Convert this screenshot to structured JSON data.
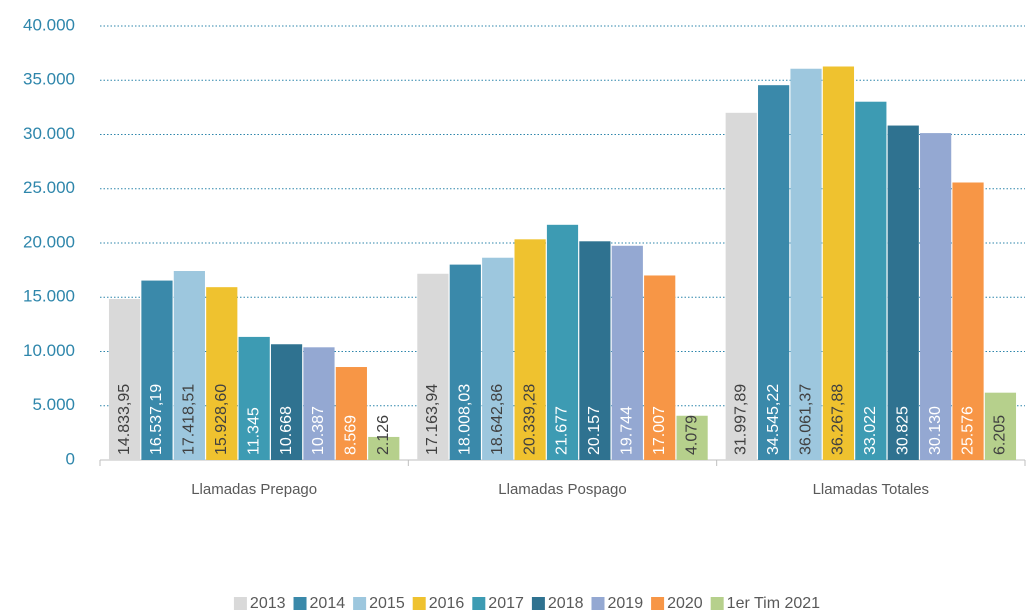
{
  "chart_data": {
    "type": "bar",
    "categories": [
      "Llamadas Prepago",
      "Llamadas Pospago",
      "Llamadas Totales"
    ],
    "series": [
      {
        "name": "2013",
        "color": "#d9d9d9",
        "label_color": "#404040",
        "values": [
          14833.95,
          17163.94,
          31997.89
        ],
        "value_labels": [
          "14.833,95",
          "17.163,94",
          "31.997,89"
        ]
      },
      {
        "name": "2014",
        "color": "#3a89aa",
        "label_color": "#ffffff",
        "values": [
          16537.19,
          18008.03,
          34545.22
        ],
        "value_labels": [
          "16.537,19",
          "18.008,03",
          "34.545,22"
        ]
      },
      {
        "name": "2015",
        "color": "#9dc7de",
        "label_color": "#404040",
        "values": [
          17418.51,
          18642.86,
          36061.37
        ],
        "value_labels": [
          "17.418,51",
          "18.642,86",
          "36.061,37"
        ]
      },
      {
        "name": "2016",
        "color": "#efc22f",
        "label_color": "#404040",
        "values": [
          15928.6,
          20339.28,
          36267.88
        ],
        "value_labels": [
          "15.928,60",
          "20.339,28",
          "36.267,88"
        ]
      },
      {
        "name": "2017",
        "color": "#3d9bb3",
        "label_color": "#ffffff",
        "values": [
          11345,
          21677,
          33022
        ],
        "value_labels": [
          "11.345",
          "21.677",
          "33.022"
        ]
      },
      {
        "name": "2018",
        "color": "#2f7290",
        "label_color": "#ffffff",
        "values": [
          10668,
          20157,
          30825
        ],
        "value_labels": [
          "10.668",
          "20.157",
          "30.825"
        ]
      },
      {
        "name": "2019",
        "color": "#94a8d2",
        "label_color": "#ffffff",
        "values": [
          10387,
          19744,
          30130
        ],
        "value_labels": [
          "10.387",
          "19.744",
          "30.130"
        ]
      },
      {
        "name": "2020",
        "color": "#f79646",
        "label_color": "#ffffff",
        "values": [
          8569,
          17007,
          25576
        ],
        "value_labels": [
          "8.569",
          "17.007",
          "25.576"
        ]
      },
      {
        "name": "1er Tim 2021",
        "color": "#b6d08c",
        "label_color": "#404040",
        "values": [
          2126,
          4079,
          6205
        ],
        "value_labels": [
          "2.126",
          "4.079",
          "6.205"
        ]
      }
    ],
    "ylim": [
      0,
      40000
    ],
    "yticks": [
      0,
      {
        "value": 5000,
        "label": "5.000"
      },
      {
        "value": 10000,
        "label": "10.000"
      },
      {
        "value": 15000,
        "label": "15.000"
      },
      {
        "value": 20000,
        "label": "20.000"
      },
      {
        "value": 25000,
        "label": "25.000"
      },
      {
        "value": 30000,
        "label": "30.000"
      },
      {
        "value": 35000,
        "label": "35.000"
      },
      {
        "value": 40000,
        "label": "40.000"
      }
    ],
    "grid": true,
    "legend": "bottom"
  }
}
